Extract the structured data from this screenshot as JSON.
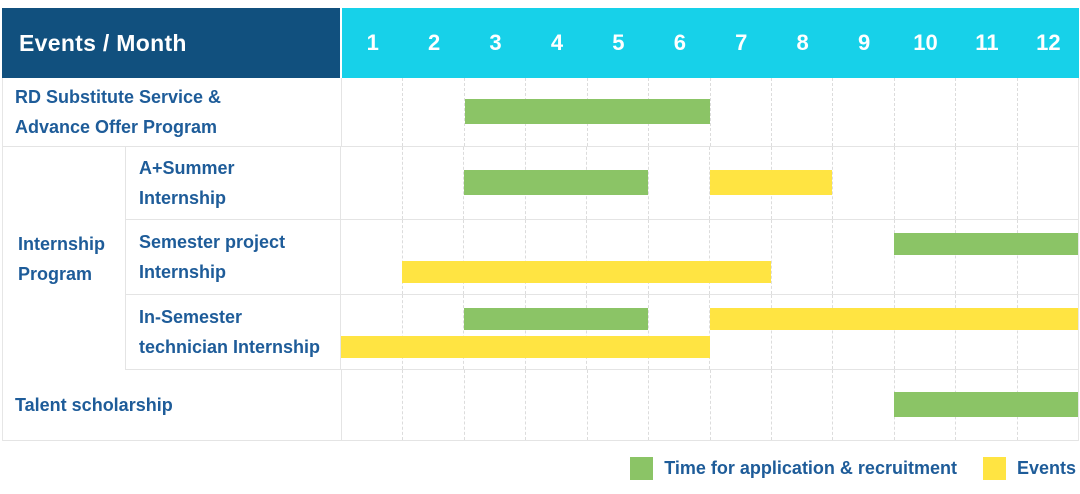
{
  "header": {
    "title": "Events / Month",
    "months": [
      "1",
      "2",
      "3",
      "4",
      "5",
      "6",
      "7",
      "8",
      "9",
      "10",
      "11",
      "12"
    ]
  },
  "colors": {
    "header_bg": "#11507E",
    "months_bg": "#17D1E9",
    "recruitment": "#8BC466",
    "event": "#FFE442",
    "label_text": "#1E5C99"
  },
  "legend": [
    {
      "type": "recruitment",
      "label": "Time for application & recruitment"
    },
    {
      "type": "event",
      "label": "Events"
    }
  ],
  "chart_data": {
    "type": "gantt",
    "unit": "month",
    "x_domain": [
      1,
      12
    ],
    "groups": {
      "internship": {
        "label": "Internship Program",
        "label_lines": [
          "Internship",
          "Program"
        ]
      }
    },
    "rows": [
      {
        "group": null,
        "label": "RD Substitute Service & Advance Offer Program",
        "label_lines": [
          "RD Substitute Service &",
          "Advance Offer Program"
        ],
        "lines": 1,
        "bars": [
          {
            "type": "recruitment",
            "start": 3,
            "end": 6,
            "line": 0
          }
        ]
      },
      {
        "group": "internship",
        "label": "A+Summer Internship",
        "label_lines": [
          "A+Summer",
          "Internship"
        ],
        "lines": 1,
        "bars": [
          {
            "type": "recruitment",
            "start": 3,
            "end": 5,
            "line": 0
          },
          {
            "type": "event",
            "start": 7,
            "end": 8,
            "line": 0
          }
        ]
      },
      {
        "group": "internship",
        "label": "Semester project Internship",
        "label_lines": [
          "Semester project",
          "Internship"
        ],
        "lines": 2,
        "bars": [
          {
            "type": "recruitment",
            "start": 10,
            "end": 12,
            "line": 0
          },
          {
            "type": "event",
            "start": 2,
            "end": 7,
            "line": 1
          }
        ]
      },
      {
        "group": "internship",
        "label": "In-Semester technician Internship",
        "label_lines": [
          "In-Semester",
          "technician Internship"
        ],
        "lines": 2,
        "bars": [
          {
            "type": "recruitment",
            "start": 3,
            "end": 5,
            "line": 0
          },
          {
            "type": "event",
            "start": 7,
            "end": 12,
            "line": 0
          },
          {
            "type": "event",
            "start": 1,
            "end": 6,
            "line": 1
          }
        ]
      },
      {
        "group": null,
        "label": "Talent scholarship",
        "label_lines": [
          "Talent scholarship"
        ],
        "lines": 1,
        "bars": [
          {
            "type": "recruitment",
            "start": 10,
            "end": 12,
            "line": 0
          }
        ]
      }
    ]
  }
}
